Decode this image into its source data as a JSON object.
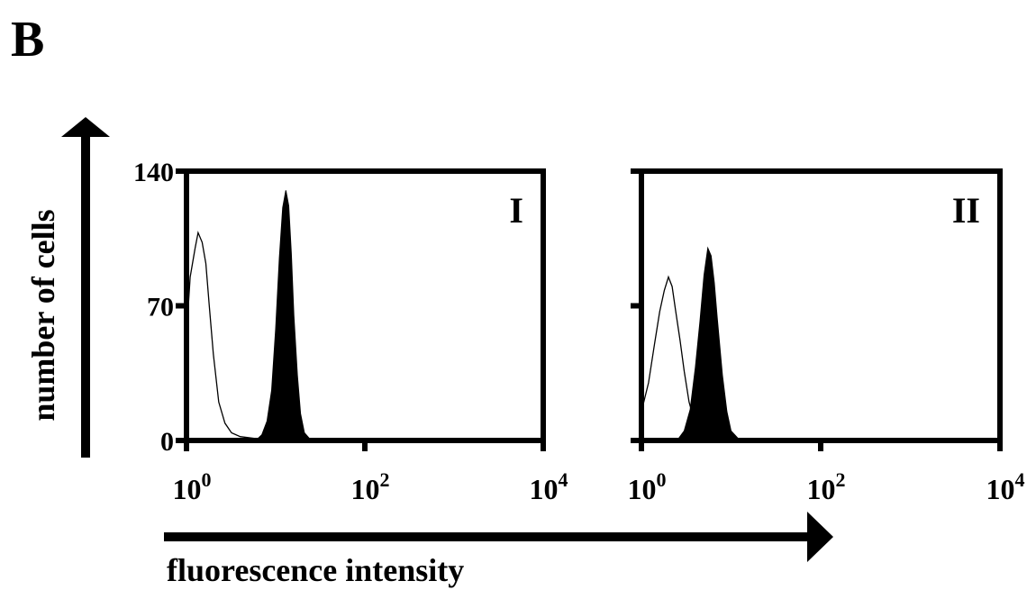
{
  "panel_letter": "B",
  "y_axis_label": "number of cells",
  "x_axis_label": "fluorescence intensity",
  "colors": {
    "ink": "#000000",
    "background": "#ffffff"
  },
  "chart_data": [
    {
      "type": "area",
      "panel_label": "I",
      "xscale": "log",
      "xlim": [
        1,
        10000
      ],
      "ylim": [
        0,
        140
      ],
      "y_ticks": [
        "0",
        "70",
        "140"
      ],
      "x_ticks": [
        {
          "base": "10",
          "exp": "0"
        },
        {
          "base": "10",
          "exp": "2"
        },
        {
          "base": "10",
          "exp": "4"
        }
      ],
      "series": [
        {
          "style": "outline",
          "x": [
            1.0,
            1.1,
            1.25,
            1.35,
            1.5,
            1.65,
            1.8,
            2.0,
            2.3,
            2.7,
            3.2,
            4.0,
            6.0,
            10.0,
            30.0
          ],
          "y": [
            55,
            85,
            100,
            108,
            103,
            92,
            70,
            45,
            20,
            9,
            4,
            2,
            1,
            0,
            0
          ]
        },
        {
          "style": "filled",
          "x": [
            6.0,
            7.0,
            8.0,
            9.0,
            10.0,
            11.0,
            12.0,
            13.0,
            14.0,
            15.0,
            16.0,
            17.5,
            19.0,
            21.0,
            24.0,
            30.0
          ],
          "y": [
            0,
            3,
            10,
            26,
            58,
            95,
            121,
            130,
            122,
            97,
            65,
            34,
            14,
            4,
            1,
            0
          ]
        }
      ]
    },
    {
      "type": "area",
      "panel_label": "II",
      "xscale": "log",
      "xlim": [
        1,
        10000
      ],
      "ylim": [
        0,
        140
      ],
      "y_ticks": [
        "",
        "",
        ""
      ],
      "x_ticks": [
        {
          "base": "10",
          "exp": "0"
        },
        {
          "base": "10",
          "exp": "2"
        },
        {
          "base": "10",
          "exp": "4"
        }
      ],
      "series": [
        {
          "style": "outline",
          "x": [
            1.0,
            1.2,
            1.4,
            1.6,
            1.8,
            2.0,
            2.2,
            2.4,
            2.7,
            3.0,
            3.4,
            4.0,
            5.0,
            6.5,
            10.0
          ],
          "y": [
            15,
            30,
            50,
            67,
            78,
            85,
            80,
            68,
            52,
            36,
            20,
            8,
            2,
            0,
            0
          ]
        },
        {
          "style": "filled",
          "x": [
            2.5,
            3.0,
            3.5,
            4.0,
            4.5,
            5.0,
            5.5,
            6.0,
            6.5,
            7.0,
            8.0,
            9.0,
            10.0,
            12.0,
            15.0
          ],
          "y": [
            0,
            5,
            16,
            38,
            62,
            86,
            100,
            96,
            82,
            64,
            34,
            15,
            5,
            1,
            0
          ]
        }
      ]
    }
  ]
}
